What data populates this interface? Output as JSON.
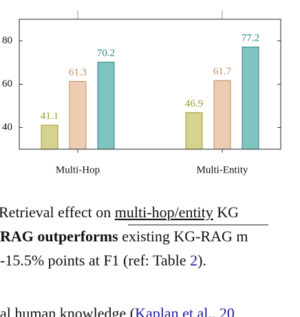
{
  "chart_data": {
    "type": "bar",
    "categories": [
      "Multi-Hop",
      "Multi-Entity"
    ],
    "series": [
      {
        "color": "#d6d28f",
        "stroke": "#a09a2b",
        "values": [
          41.1,
          46.9
        ]
      },
      {
        "color": "#eccdb2",
        "stroke": "#c08a5a",
        "values": [
          61.3,
          61.7
        ]
      },
      {
        "color": "#80c4c1",
        "stroke": "#2a8585",
        "values": [
          70.2,
          77.2
        ]
      }
    ],
    "ylim": [
      30,
      90
    ],
    "yticks": [
      40,
      60,
      80
    ]
  },
  "caption": {
    "lines": [
      [
        "Retrieval effect on ",
        "multi-hop/entity",
        " KG"
      ],
      [
        "RAG outperforms",
        " existing KG-RAG m"
      ],
      [
        "-15.5% points at F1 (ref: Table ",
        "2",
        ")."
      ],
      [
        "al human knowledge (",
        "Kaplan et al., 20"
      ]
    ]
  }
}
